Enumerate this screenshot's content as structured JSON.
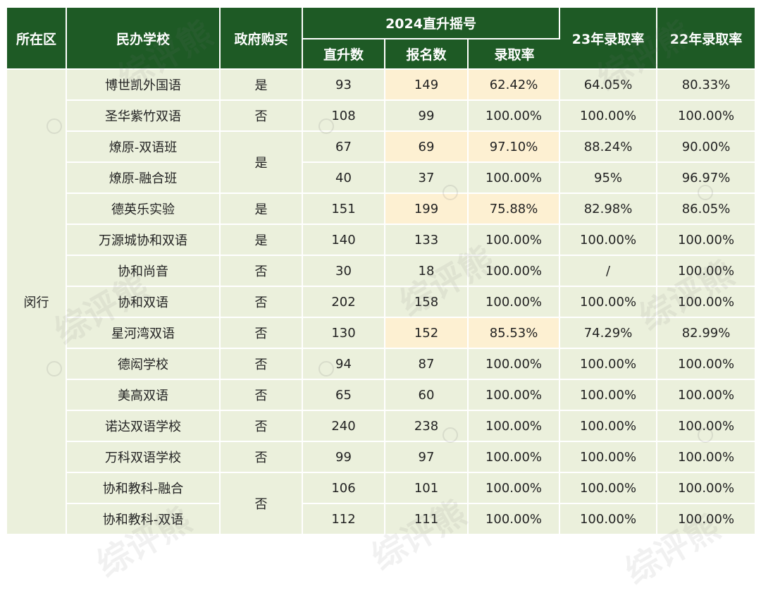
{
  "header": {
    "district": "所在区",
    "school": "民办学校",
    "gov_purchase": "政府购买",
    "lottery_group": "2024直升摇号",
    "direct": "直升数",
    "applicants": "报名数",
    "rate": "录取率",
    "rate23": "23年录取率",
    "rate22": "22年录取率"
  },
  "district": "闵行",
  "rows": [
    {
      "school": "博世凯外国语",
      "gov": "是",
      "direct": "93",
      "applicants": "149",
      "rate": "62.42%",
      "rate23": "64.05%",
      "rate22": "80.33%"
    },
    {
      "school": "圣华紫竹双语",
      "gov": "否",
      "direct": "108",
      "applicants": "99",
      "rate": "100.00%",
      "rate23": "100.00%",
      "rate22": "100.00%"
    },
    {
      "school": "燎原-双语班",
      "gov": "是",
      "direct": "67",
      "applicants": "69",
      "rate": "97.10%",
      "rate23": "88.24%",
      "rate22": "90.00%"
    },
    {
      "school": "燎原-融合班",
      "gov": "",
      "direct": "40",
      "applicants": "37",
      "rate": "100.00%",
      "rate23": "95%",
      "rate22": "96.97%"
    },
    {
      "school": "德英乐实验",
      "gov": "是",
      "direct": "151",
      "applicants": "199",
      "rate": "75.88%",
      "rate23": "82.98%",
      "rate22": "86.05%"
    },
    {
      "school": "万源城协和双语",
      "gov": "是",
      "direct": "140",
      "applicants": "133",
      "rate": "100.00%",
      "rate23": "100.00%",
      "rate22": "100.00%"
    },
    {
      "school": "协和尚音",
      "gov": "否",
      "direct": "30",
      "applicants": "18",
      "rate": "100.00%",
      "rate23": "/",
      "rate22": "100.00%"
    },
    {
      "school": "协和双语",
      "gov": "否",
      "direct": "202",
      "applicants": "158",
      "rate": "100.00%",
      "rate23": "100.00%",
      "rate22": "100.00%"
    },
    {
      "school": "星河湾双语",
      "gov": "否",
      "direct": "130",
      "applicants": "152",
      "rate": "85.53%",
      "rate23": "74.29%",
      "rate22": "82.99%"
    },
    {
      "school": "德闳学校",
      "gov": "否",
      "direct": "94",
      "applicants": "87",
      "rate": "100.00%",
      "rate23": "100.00%",
      "rate22": "100.00%"
    },
    {
      "school": "美高双语",
      "gov": "否",
      "direct": "65",
      "applicants": "60",
      "rate": "100.00%",
      "rate23": "100.00%",
      "rate22": "100.00%"
    },
    {
      "school": "诺达双语学校",
      "gov": "否",
      "direct": "240",
      "applicants": "238",
      "rate": "100.00%",
      "rate23": "100.00%",
      "rate22": "100.00%"
    },
    {
      "school": "万科双语学校",
      "gov": "否",
      "direct": "99",
      "applicants": "97",
      "rate": "100.00%",
      "rate23": "100.00%",
      "rate22": "100.00%"
    },
    {
      "school": "协和教科-融合",
      "gov": "否",
      "direct": "106",
      "applicants": "101",
      "rate": "100.00%",
      "rate23": "100.00%",
      "rate22": "100.00%"
    },
    {
      "school": "协和教科-双语",
      "gov": "",
      "direct": "112",
      "applicants": "111",
      "rate": "100.00%",
      "rate23": "100.00%",
      "rate22": "100.00%"
    }
  ],
  "highlight_color": "#fdf0d2",
  "header_color": "#1e5a25",
  "cell_color": "#ebf0dc",
  "watermark_text": "综评熊"
}
